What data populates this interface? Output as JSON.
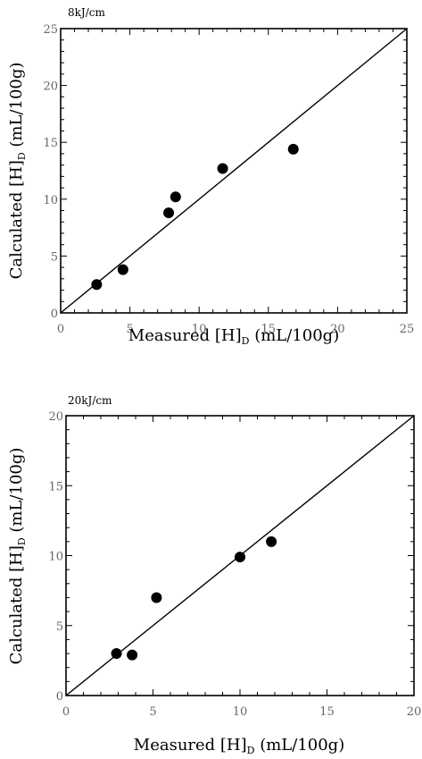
{
  "chart_data": [
    {
      "type": "scatter",
      "annotation": "8kJ/cm",
      "xlabel": {
        "main": "Measured [H]",
        "sub": "D",
        "unit": " (mL/100g)"
      },
      "ylabel": {
        "main": "Calculated [H]",
        "sub": "D",
        "unit": " (mL/100g)"
      },
      "xlim": [
        0,
        25
      ],
      "ylim": [
        0,
        25
      ],
      "xticks": [
        "0",
        "5",
        "10",
        "15",
        "20",
        "25"
      ],
      "yticks": [
        "0",
        "5",
        "10",
        "15",
        "20",
        "25"
      ],
      "reference_line": "y = x",
      "grid": false,
      "points": [
        {
          "x": 2.6,
          "y": 2.5
        },
        {
          "x": 4.5,
          "y": 3.8
        },
        {
          "x": 7.8,
          "y": 8.8
        },
        {
          "x": 8.3,
          "y": 10.2
        },
        {
          "x": 11.7,
          "y": 12.7
        },
        {
          "x": 16.8,
          "y": 14.4
        }
      ]
    },
    {
      "type": "scatter",
      "annotation": "20kJ/cm",
      "xlabel": {
        "main": "Measured [H]",
        "sub": "D",
        "unit": " (mL/100g)"
      },
      "ylabel": {
        "main": "Calculated [H]",
        "sub": "D",
        "unit": " (mL/100g)"
      },
      "xlim": [
        0,
        20
      ],
      "ylim": [
        0,
        20
      ],
      "xticks": [
        "0",
        "5",
        "10",
        "15",
        "20"
      ],
      "yticks": [
        "0",
        "5",
        "10",
        "15",
        "20"
      ],
      "reference_line": "y = x",
      "grid": false,
      "points": [
        {
          "x": 2.9,
          "y": 3.0
        },
        {
          "x": 3.8,
          "y": 2.9
        },
        {
          "x": 5.2,
          "y": 7.0
        },
        {
          "x": 10.0,
          "y": 9.9
        },
        {
          "x": 11.8,
          "y": 11.0
        }
      ]
    }
  ]
}
